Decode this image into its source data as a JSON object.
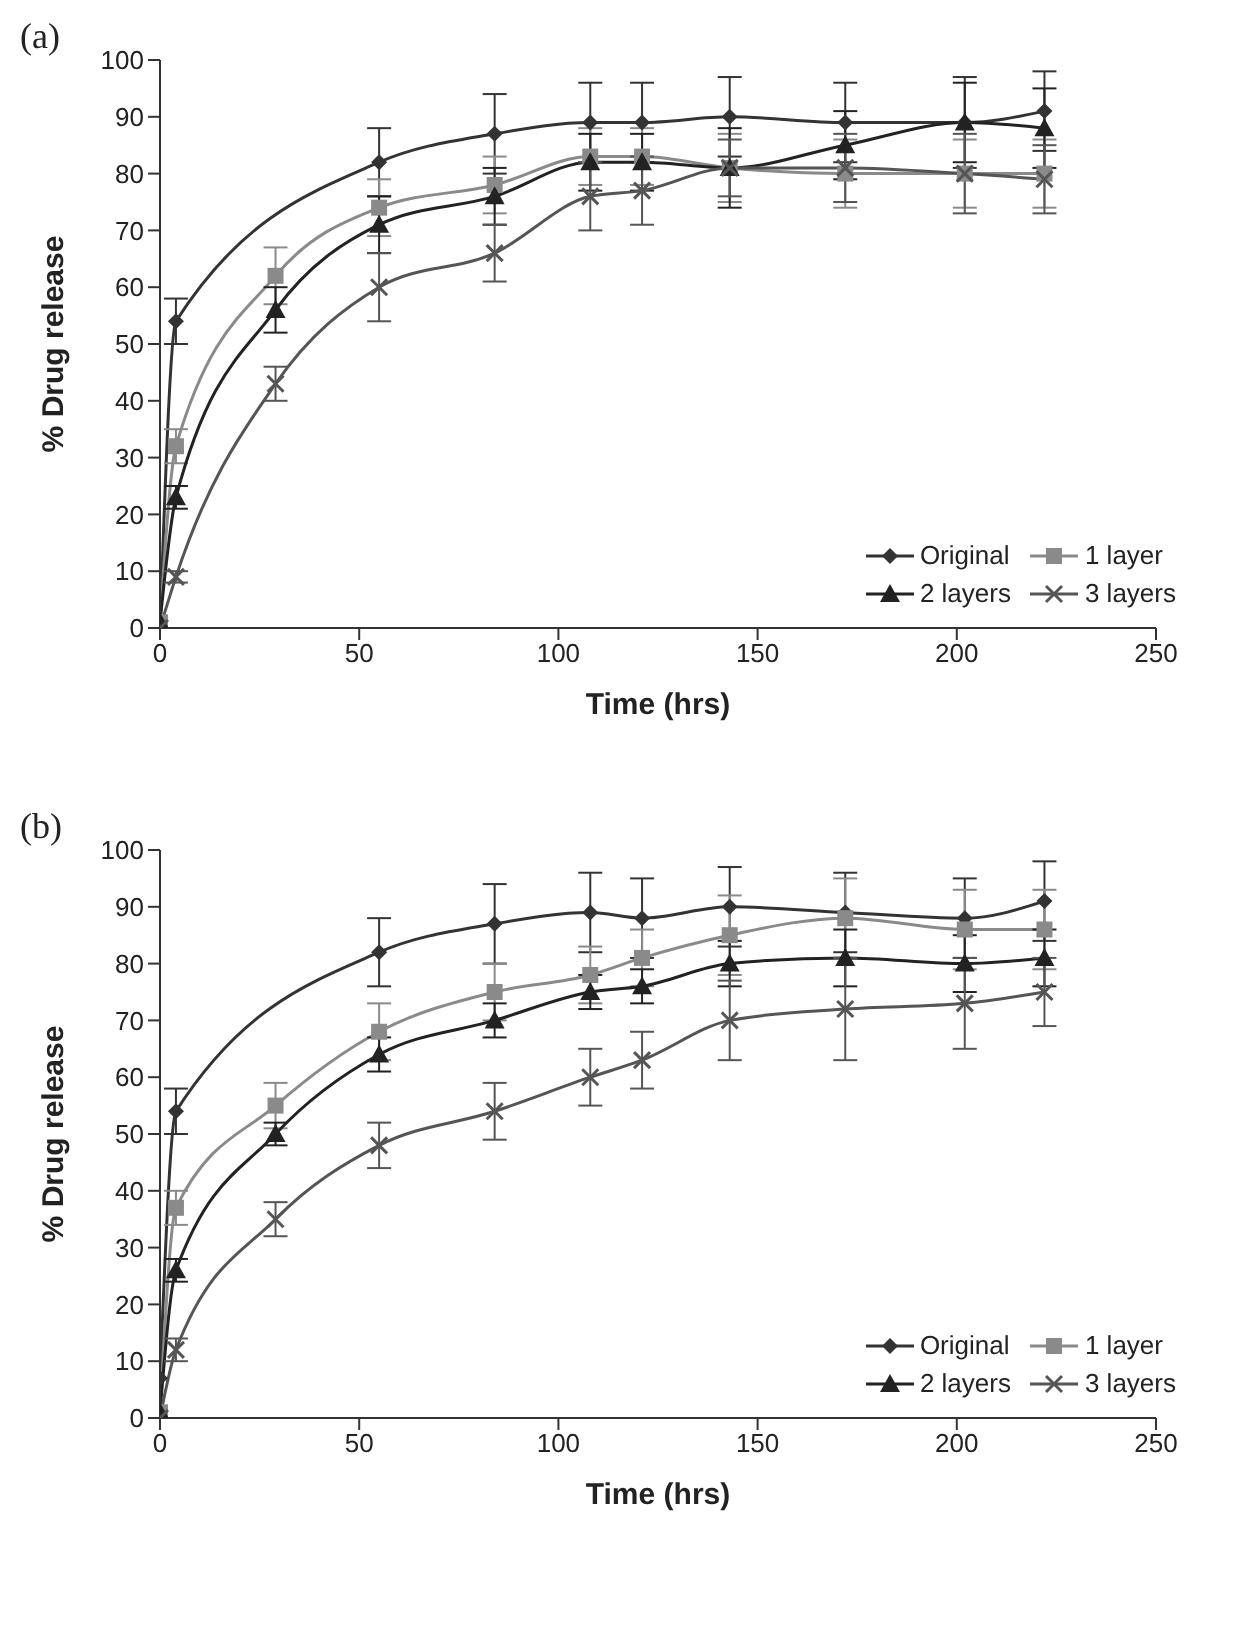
{
  "chart_data": [
    {
      "type": "line",
      "title": "(a)",
      "xlabel": "Time (hrs)",
      "ylabel": "% Drug release",
      "x": [
        0,
        4,
        29,
        55,
        84,
        108,
        121,
        143,
        172,
        202,
        222
      ],
      "xlim": [
        0,
        250
      ],
      "xticks": [
        0,
        50,
        100,
        150,
        200,
        250
      ],
      "ylim": [
        0,
        100
      ],
      "yticks": [
        0,
        10,
        20,
        30,
        40,
        50,
        60,
        70,
        80,
        90,
        100
      ],
      "grid": false,
      "legend": "bottom right",
      "line_style": "solid",
      "series": [
        {
          "name": "Original",
          "color": "#333333",
          "marker": "diamond",
          "values": [
            0,
            54,
            null,
            82,
            87,
            89,
            89,
            90,
            89,
            89,
            91
          ],
          "errors": [
            null,
            4,
            null,
            6,
            7,
            7,
            7,
            7,
            7,
            8,
            7
          ]
        },
        {
          "name": "1 layer",
          "color": "#8a8a8a",
          "marker": "square",
          "values": [
            1,
            32,
            62,
            74,
            78,
            83,
            83,
            81,
            80,
            80,
            80
          ],
          "errors": [
            null,
            3,
            5,
            5,
            5,
            5,
            5,
            6,
            6,
            6,
            6
          ]
        },
        {
          "name": "2 layers",
          "color": "#222222",
          "marker": "triangle",
          "values": [
            1,
            23,
            56,
            71,
            76,
            82,
            82,
            81,
            85,
            89,
            88
          ],
          "errors": [
            null,
            2,
            4,
            5,
            5,
            5,
            5,
            7,
            6,
            7,
            7
          ]
        },
        {
          "name": "3 layers",
          "color": "#555555",
          "marker": "cross",
          "values": [
            0,
            9,
            43,
            60,
            66,
            76,
            77,
            81,
            81,
            80,
            79
          ],
          "errors": [
            null,
            1,
            3,
            6,
            5,
            6,
            6,
            5,
            6,
            7,
            6
          ]
        }
      ]
    },
    {
      "type": "line",
      "title": "(b)",
      "xlabel": "Time (hrs)",
      "ylabel": "% Drug release",
      "x": [
        0,
        4,
        29,
        55,
        84,
        108,
        121,
        143,
        172,
        202,
        222
      ],
      "xlim": [
        0,
        250
      ],
      "xticks": [
        0,
        50,
        100,
        150,
        200,
        250
      ],
      "ylim": [
        0,
        100
      ],
      "yticks": [
        0,
        10,
        20,
        30,
        40,
        50,
        60,
        70,
        80,
        90,
        100
      ],
      "grid": false,
      "legend": "bottom right",
      "line_style": "solid",
      "series": [
        {
          "name": "Original",
          "color": "#333333",
          "marker": "diamond",
          "values": [
            7,
            54,
            null,
            82,
            87,
            89,
            88,
            90,
            89,
            88,
            91
          ],
          "errors": [
            null,
            4,
            null,
            6,
            7,
            7,
            7,
            7,
            7,
            7,
            7
          ]
        },
        {
          "name": "1 layer",
          "color": "#8a8a8a",
          "marker": "square",
          "values": [
            1,
            37,
            55,
            68,
            75,
            78,
            81,
            85,
            88,
            86,
            86
          ],
          "errors": [
            null,
            3,
            4,
            5,
            5,
            5,
            5,
            7,
            7,
            7,
            7
          ]
        },
        {
          "name": "2 layers",
          "color": "#222222",
          "marker": "triangle",
          "values": [
            1,
            26,
            50,
            64,
            70,
            75,
            76,
            80,
            81,
            80,
            81
          ],
          "errors": [
            null,
            2,
            2,
            3,
            3,
            3,
            3,
            4,
            5,
            5,
            5
          ]
        },
        {
          "name": "3 layers",
          "color": "#555555",
          "marker": "cross",
          "values": [
            0,
            12,
            35,
            48,
            54,
            60,
            63,
            70,
            72,
            73,
            75
          ],
          "errors": [
            null,
            2,
            3,
            4,
            5,
            5,
            5,
            7,
            9,
            8,
            6
          ]
        }
      ]
    }
  ]
}
